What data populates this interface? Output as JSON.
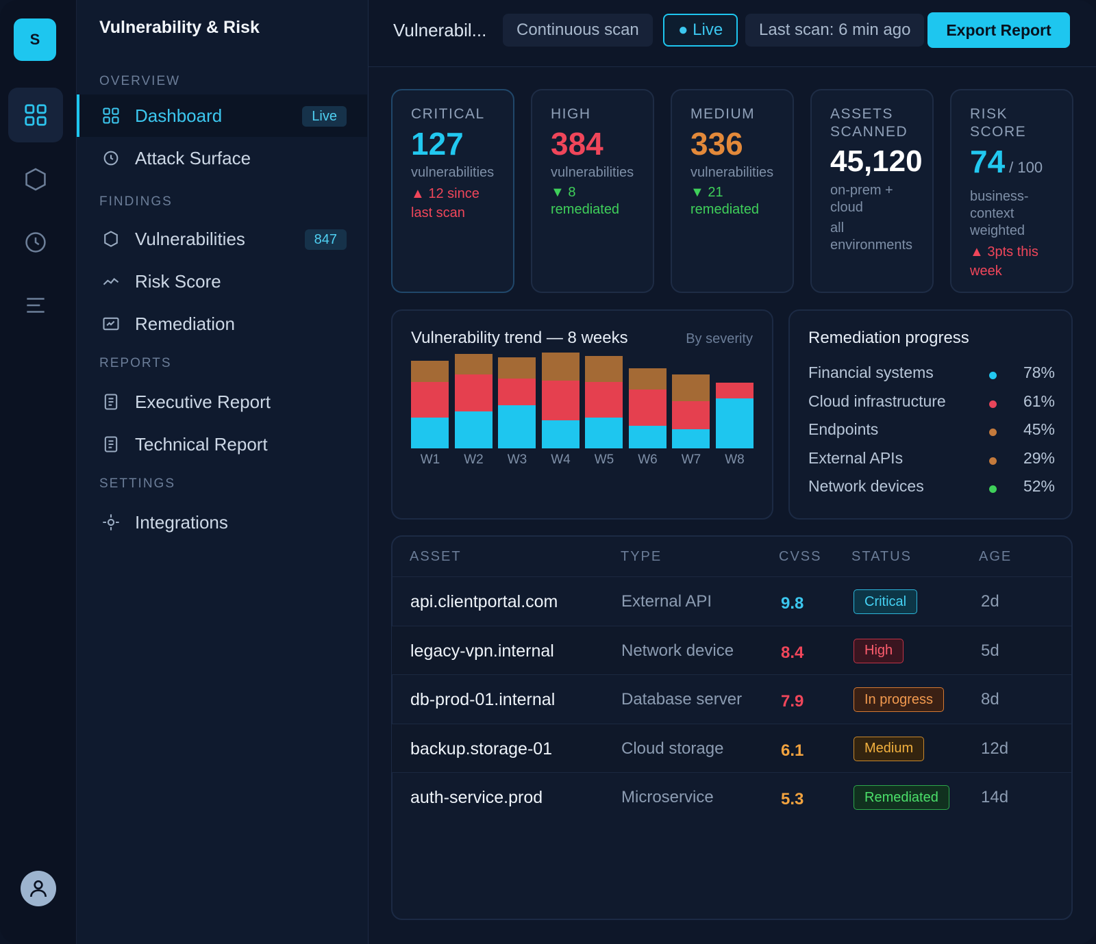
{
  "app": {
    "logo_letter": "S",
    "sidebar_title": "Vulnerability & Risk"
  },
  "sidebar": {
    "sections": {
      "overview": "OVERVIEW",
      "findings": "FINDINGS",
      "reports": "REPORTS",
      "settings": "SETTINGS"
    },
    "items": {
      "dashboard": {
        "label": "Dashboard",
        "badge": "Live"
      },
      "attack_surface": {
        "label": "Attack Surface"
      },
      "vulnerabilities": {
        "label": "Vulnerabilities",
        "badge": "847"
      },
      "risk_score": {
        "label": "Risk Score"
      },
      "remediation": {
        "label": "Remediation"
      },
      "executive_report": {
        "label": "Executive Report"
      },
      "technical_report": {
        "label": "Technical Report"
      },
      "integrations": {
        "label": "Integrations"
      }
    }
  },
  "topbar": {
    "breadcrumb": "Vulnerabil...",
    "scan_mode": "Continuous scan",
    "live": "● Live",
    "last_scan": "Last scan: 6 min ago",
    "export": "Export Report"
  },
  "cards": {
    "critical": {
      "label": "CRITICAL",
      "value": "127",
      "sub": "vulnerabilities",
      "delta1": "▲ 12 since",
      "delta2": "last scan"
    },
    "high": {
      "label": "HIGH",
      "value": "384",
      "sub": "vulnerabilities",
      "delta1": "▼ 8",
      "delta2": "remediated"
    },
    "medium": {
      "label": "MEDIUM",
      "value": "336",
      "sub": "vulnerabilities",
      "delta1": "▼ 21",
      "delta2": "remediated"
    },
    "assets": {
      "label1": "ASSETS",
      "label2": "SCANNED",
      "value": "45,120",
      "sub1": "on-prem +",
      "sub2": "cloud",
      "sub3": "all",
      "sub4": "environments"
    },
    "risk": {
      "label1": "RISK",
      "label2": "SCORE",
      "value": "74",
      "max": "/ 100",
      "sub1": "business-",
      "sub2": "context",
      "sub3": "weighted",
      "delta1": "▲ 3pts this",
      "delta2": "week"
    }
  },
  "trend": {
    "title": "Vulnerability trend — 8 weeks",
    "subtitle": "By severity"
  },
  "chart_data": {
    "type": "bar",
    "stacked": true,
    "title": "Vulnerability trend — 8 weeks",
    "subtitle": "By severity",
    "categories": [
      "W1",
      "W2",
      "W3",
      "W4",
      "W5",
      "W6",
      "W7",
      "W8"
    ],
    "series": [
      {
        "name": "Critical",
        "color": "#1ec6ef",
        "values": [
          44,
          53,
          62,
          40,
          44,
          33,
          28,
          72
        ]
      },
      {
        "name": "High",
        "color": "#e5404f",
        "values": [
          52,
          53,
          39,
          58,
          52,
          52,
          40,
          23
        ]
      },
      {
        "name": "Medium",
        "color": "#a46a35",
        "values": [
          30,
          30,
          30,
          40,
          37,
          30,
          38,
          0
        ]
      }
    ],
    "ylim": [
      0,
      140
    ],
    "grid": false
  },
  "remediation": {
    "title": "Remediation progress",
    "rows": [
      {
        "name": "Financial systems",
        "pct": "78%",
        "color": "#22c8f0"
      },
      {
        "name": "Cloud infrastructure",
        "pct": "61%",
        "color": "#e8455a"
      },
      {
        "name": "Endpoints",
        "pct": "45%",
        "color": "#c47a3c"
      },
      {
        "name": "External APIs",
        "pct": "29%",
        "color": "#c47a3c"
      },
      {
        "name": "Network devices",
        "pct": "52%",
        "color": "#3fd05a"
      }
    ]
  },
  "table": {
    "headers": {
      "asset": "ASSET",
      "type": "TYPE",
      "cvss": "CVSS",
      "status": "STATUS",
      "age": "AGE"
    },
    "rows": [
      {
        "asset": "api.clientportal.com",
        "type": "External API",
        "cvss": "9.8",
        "status": "Critical",
        "age": "2d"
      },
      {
        "asset": "legacy-vpn.internal",
        "type": "Network device",
        "cvss": "8.4",
        "status": "High",
        "age": "5d"
      },
      {
        "asset": "db-prod-01.internal",
        "type": "Database server",
        "cvss": "7.9",
        "status": "In progress",
        "age": "8d"
      },
      {
        "asset": "backup.storage-01",
        "type": "Cloud storage",
        "cvss": "6.1",
        "status": "Medium",
        "age": "12d"
      },
      {
        "asset": "auth-service.prod",
        "type": "Microservice",
        "cvss": "5.3",
        "status": "Remediated",
        "age": "14d"
      }
    ]
  }
}
